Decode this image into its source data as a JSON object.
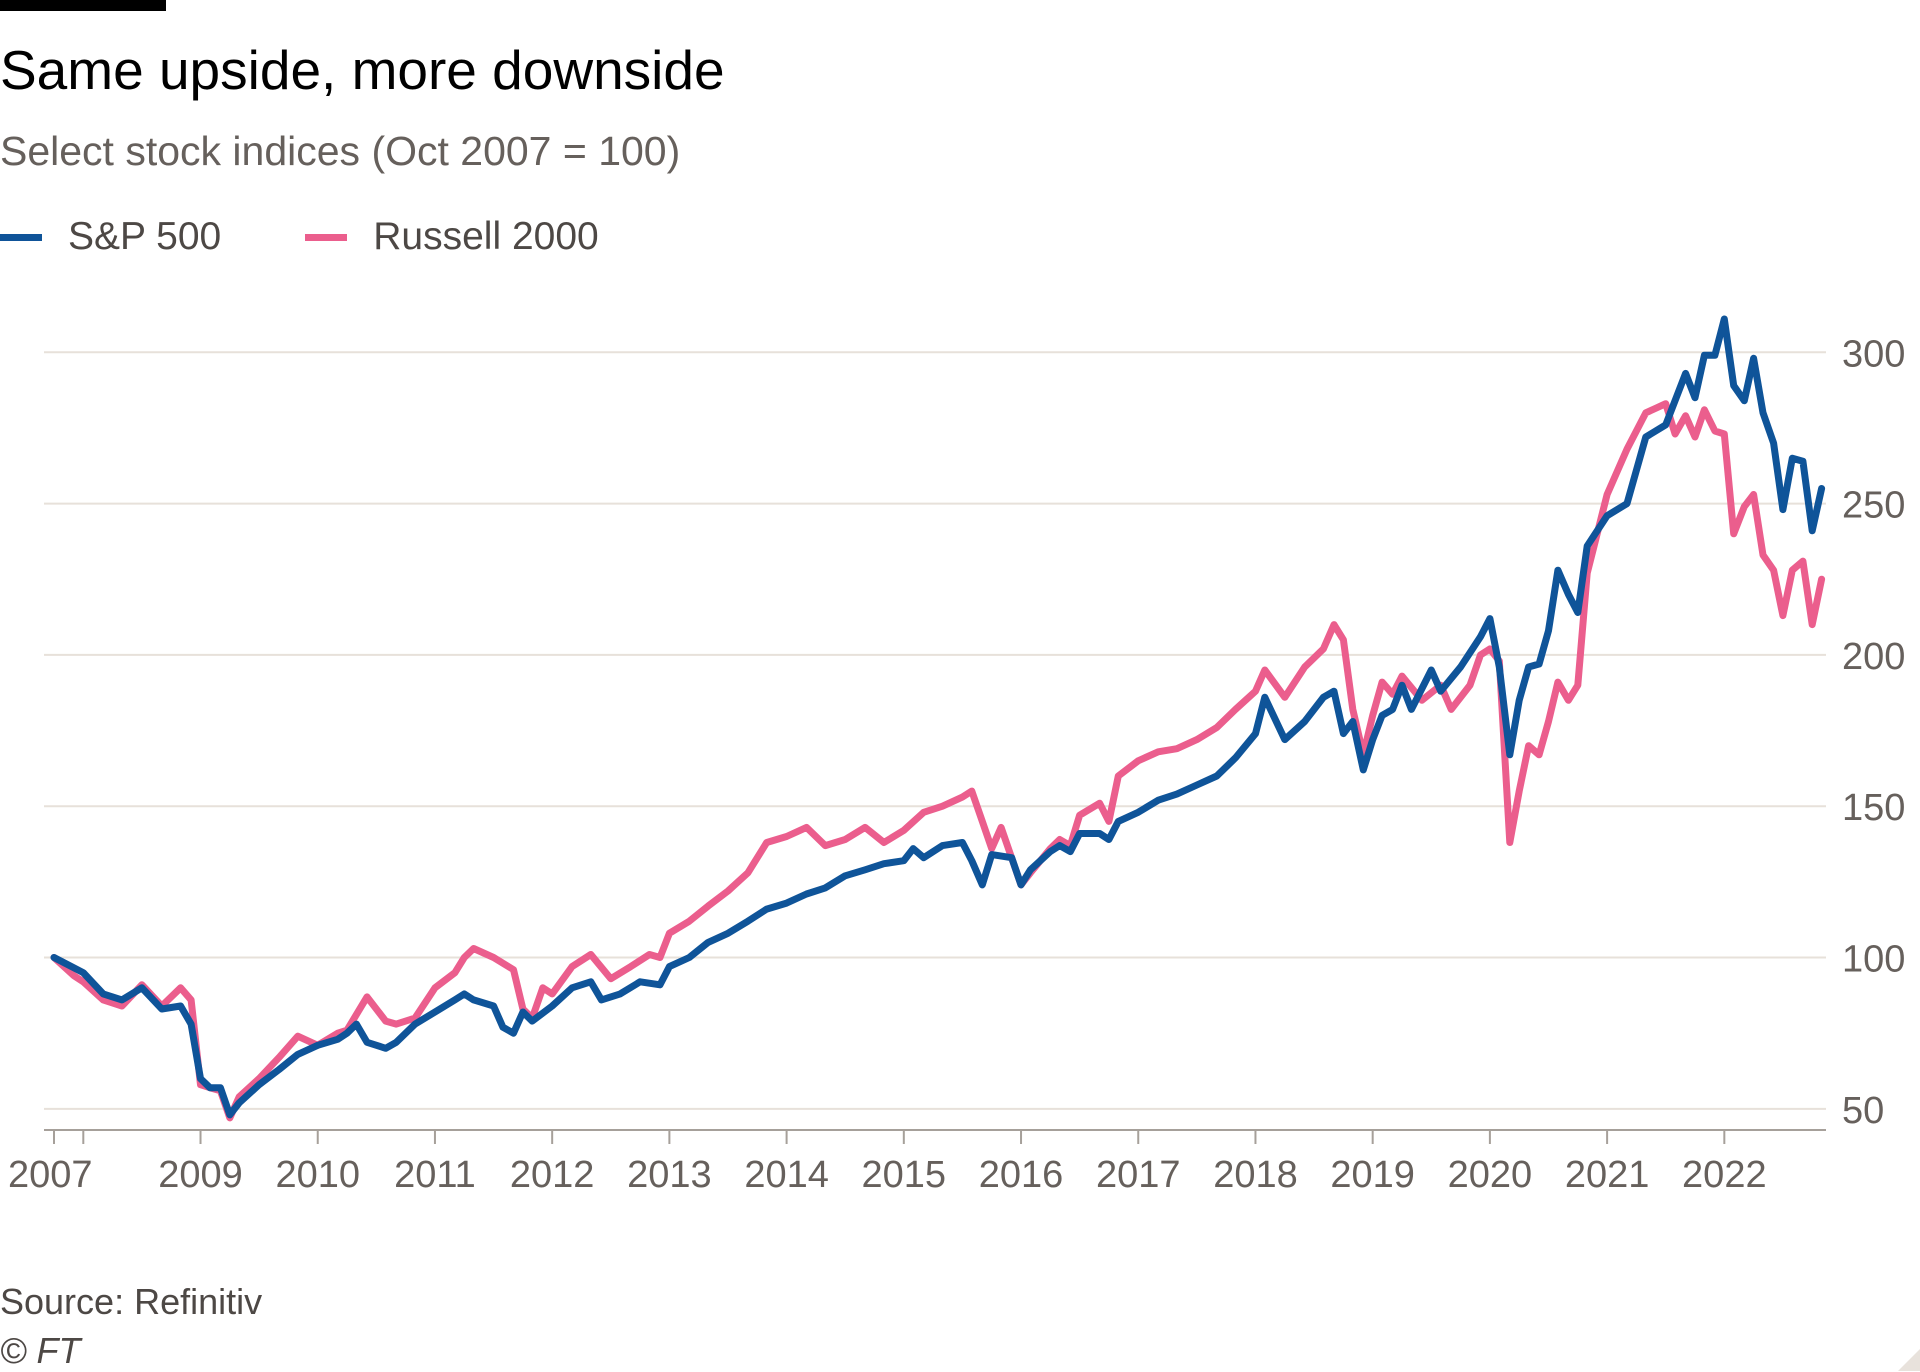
{
  "header": {
    "title": "Same upside, more downside",
    "subtitle": "Select stock indices (Oct 2007 = 100)"
  },
  "footer": {
    "source": "Source: Refinitiv",
    "copyright": "© FT"
  },
  "colors": {
    "sp500": "#0f5499",
    "russell": "#eb5e8d",
    "grid": "#e7e1da",
    "tick_text": "#66605c",
    "axis": "#a6a09a"
  },
  "chart_data": {
    "type": "line",
    "title": "Same upside, more downside",
    "subtitle": "Select stock indices (Oct 2007 = 100)",
    "xlabel": "",
    "ylabel": "",
    "xlim": [
      2007.75,
      2022.8333
    ],
    "ylim": [
      45,
      310
    ],
    "yticks": [
      50,
      100,
      150,
      200,
      250,
      300
    ],
    "ytick_position": "right",
    "xticks": [
      {
        "label": "2007",
        "x": 2007.75
      },
      {
        "label": "2009",
        "x": 2009.0
      },
      {
        "label": "2010",
        "x": 2010.0
      },
      {
        "label": "2011",
        "x": 2011.0
      },
      {
        "label": "2012",
        "x": 2012.0
      },
      {
        "label": "2013",
        "x": 2013.0
      },
      {
        "label": "2014",
        "x": 2014.0
      },
      {
        "label": "2015",
        "x": 2015.0
      },
      {
        "label": "2016",
        "x": 2016.0
      },
      {
        "label": "2017",
        "x": 2017.0
      },
      {
        "label": "2018",
        "x": 2018.0
      },
      {
        "label": "2019",
        "x": 2019.0
      },
      {
        "label": "2020",
        "x": 2020.0
      },
      {
        "label": "2021",
        "x": 2021.0
      },
      {
        "label": "2022",
        "x": 2022.0
      }
    ],
    "minor_xticks": [
      2008.0
    ],
    "legend": "top-left",
    "series": [
      {
        "name": "S&P 500",
        "color": "#0f5499",
        "points": [
          [
            2007.75,
            100
          ],
          [
            2008.0,
            95
          ],
          [
            2008.17,
            88
          ],
          [
            2008.33,
            86
          ],
          [
            2008.5,
            90
          ],
          [
            2008.67,
            83
          ],
          [
            2008.83,
            84
          ],
          [
            2008.92,
            78
          ],
          [
            2009.0,
            60
          ],
          [
            2009.08,
            57
          ],
          [
            2009.17,
            57
          ],
          [
            2009.25,
            48
          ],
          [
            2009.33,
            52
          ],
          [
            2009.5,
            58
          ],
          [
            2009.67,
            63
          ],
          [
            2009.83,
            68
          ],
          [
            2010.0,
            71
          ],
          [
            2010.17,
            73
          ],
          [
            2010.25,
            75
          ],
          [
            2010.33,
            78
          ],
          [
            2010.42,
            72
          ],
          [
            2010.58,
            70
          ],
          [
            2010.67,
            72
          ],
          [
            2010.83,
            78
          ],
          [
            2011.0,
            82
          ],
          [
            2011.17,
            86
          ],
          [
            2011.25,
            88
          ],
          [
            2011.33,
            86
          ],
          [
            2011.5,
            84
          ],
          [
            2011.58,
            77
          ],
          [
            2011.67,
            75
          ],
          [
            2011.75,
            82
          ],
          [
            2011.83,
            79
          ],
          [
            2012.0,
            84
          ],
          [
            2012.17,
            90
          ],
          [
            2012.33,
            92
          ],
          [
            2012.42,
            86
          ],
          [
            2012.58,
            88
          ],
          [
            2012.75,
            92
          ],
          [
            2012.92,
            91
          ],
          [
            2013.0,
            97
          ],
          [
            2013.17,
            100
          ],
          [
            2013.33,
            105
          ],
          [
            2013.5,
            108
          ],
          [
            2013.67,
            112
          ],
          [
            2013.83,
            116
          ],
          [
            2014.0,
            118
          ],
          [
            2014.17,
            121
          ],
          [
            2014.33,
            123
          ],
          [
            2014.5,
            127
          ],
          [
            2014.67,
            129
          ],
          [
            2014.83,
            131
          ],
          [
            2015.0,
            132
          ],
          [
            2015.08,
            136
          ],
          [
            2015.17,
            133
          ],
          [
            2015.33,
            137
          ],
          [
            2015.5,
            138
          ],
          [
            2015.58,
            132
          ],
          [
            2015.67,
            124
          ],
          [
            2015.75,
            134
          ],
          [
            2015.92,
            133
          ],
          [
            2016.0,
            124
          ],
          [
            2016.08,
            129
          ],
          [
            2016.25,
            135
          ],
          [
            2016.33,
            137
          ],
          [
            2016.42,
            135
          ],
          [
            2016.5,
            141
          ],
          [
            2016.67,
            141
          ],
          [
            2016.75,
            139
          ],
          [
            2016.83,
            145
          ],
          [
            2017.0,
            148
          ],
          [
            2017.17,
            152
          ],
          [
            2017.33,
            154
          ],
          [
            2017.5,
            157
          ],
          [
            2017.67,
            160
          ],
          [
            2017.83,
            166
          ],
          [
            2018.0,
            174
          ],
          [
            2018.08,
            186
          ],
          [
            2018.25,
            172
          ],
          [
            2018.42,
            178
          ],
          [
            2018.58,
            186
          ],
          [
            2018.67,
            188
          ],
          [
            2018.75,
            174
          ],
          [
            2018.83,
            178
          ],
          [
            2018.92,
            162
          ],
          [
            2019.0,
            172
          ],
          [
            2019.08,
            180
          ],
          [
            2019.17,
            182
          ],
          [
            2019.25,
            190
          ],
          [
            2019.33,
            182
          ],
          [
            2019.5,
            195
          ],
          [
            2019.58,
            188
          ],
          [
            2019.75,
            196
          ],
          [
            2019.92,
            206
          ],
          [
            2020.0,
            212
          ],
          [
            2020.08,
            196
          ],
          [
            2020.17,
            167
          ],
          [
            2020.25,
            185
          ],
          [
            2020.33,
            196
          ],
          [
            2020.42,
            197
          ],
          [
            2020.5,
            208
          ],
          [
            2020.58,
            228
          ],
          [
            2020.67,
            220
          ],
          [
            2020.75,
            214
          ],
          [
            2020.83,
            236
          ],
          [
            2021.0,
            246
          ],
          [
            2021.17,
            250
          ],
          [
            2021.33,
            272
          ],
          [
            2021.5,
            276
          ],
          [
            2021.67,
            293
          ],
          [
            2021.75,
            285
          ],
          [
            2021.83,
            299
          ],
          [
            2021.92,
            299
          ],
          [
            2022.0,
            311
          ],
          [
            2022.08,
            289
          ],
          [
            2022.17,
            284
          ],
          [
            2022.25,
            298
          ],
          [
            2022.33,
            280
          ],
          [
            2022.42,
            270
          ],
          [
            2022.5,
            248
          ],
          [
            2022.58,
            265
          ],
          [
            2022.67,
            264
          ],
          [
            2022.75,
            241
          ],
          [
            2022.83,
            255
          ]
        ]
      },
      {
        "name": "Russell 2000",
        "color": "#eb5e8d",
        "points": [
          [
            2007.75,
            100
          ],
          [
            2007.92,
            94
          ],
          [
            2008.0,
            92
          ],
          [
            2008.17,
            86
          ],
          [
            2008.33,
            84
          ],
          [
            2008.5,
            91
          ],
          [
            2008.67,
            84
          ],
          [
            2008.83,
            90
          ],
          [
            2008.92,
            86
          ],
          [
            2009.0,
            58
          ],
          [
            2009.08,
            57
          ],
          [
            2009.17,
            56
          ],
          [
            2009.25,
            47
          ],
          [
            2009.33,
            54
          ],
          [
            2009.5,
            60
          ],
          [
            2009.67,
            67
          ],
          [
            2009.83,
            74
          ],
          [
            2010.0,
            71
          ],
          [
            2010.17,
            75
          ],
          [
            2010.25,
            76
          ],
          [
            2010.42,
            87
          ],
          [
            2010.58,
            79
          ],
          [
            2010.67,
            78
          ],
          [
            2010.83,
            80
          ],
          [
            2011.0,
            90
          ],
          [
            2011.17,
            95
          ],
          [
            2011.25,
            100
          ],
          [
            2011.33,
            103
          ],
          [
            2011.5,
            100
          ],
          [
            2011.67,
            96
          ],
          [
            2011.75,
            83
          ],
          [
            2011.83,
            80
          ],
          [
            2011.92,
            90
          ],
          [
            2012.0,
            88
          ],
          [
            2012.17,
            97
          ],
          [
            2012.33,
            101
          ],
          [
            2012.5,
            93
          ],
          [
            2012.67,
            97
          ],
          [
            2012.83,
            101
          ],
          [
            2012.92,
            100
          ],
          [
            2013.0,
            108
          ],
          [
            2013.17,
            112
          ],
          [
            2013.33,
            117
          ],
          [
            2013.5,
            122
          ],
          [
            2013.67,
            128
          ],
          [
            2013.83,
            138
          ],
          [
            2014.0,
            140
          ],
          [
            2014.17,
            143
          ],
          [
            2014.33,
            137
          ],
          [
            2014.5,
            139
          ],
          [
            2014.67,
            143
          ],
          [
            2014.83,
            138
          ],
          [
            2015.0,
            142
          ],
          [
            2015.17,
            148
          ],
          [
            2015.33,
            150
          ],
          [
            2015.5,
            153
          ],
          [
            2015.58,
            155
          ],
          [
            2015.67,
            145
          ],
          [
            2015.75,
            136
          ],
          [
            2015.83,
            143
          ],
          [
            2016.0,
            124
          ],
          [
            2016.08,
            128
          ],
          [
            2016.25,
            136
          ],
          [
            2016.33,
            139
          ],
          [
            2016.42,
            137
          ],
          [
            2016.5,
            147
          ],
          [
            2016.67,
            151
          ],
          [
            2016.75,
            145
          ],
          [
            2016.83,
            160
          ],
          [
            2017.0,
            165
          ],
          [
            2017.17,
            168
          ],
          [
            2017.33,
            169
          ],
          [
            2017.5,
            172
          ],
          [
            2017.67,
            176
          ],
          [
            2017.83,
            182
          ],
          [
            2018.0,
            188
          ],
          [
            2018.08,
            195
          ],
          [
            2018.25,
            186
          ],
          [
            2018.42,
            196
          ],
          [
            2018.58,
            202
          ],
          [
            2018.67,
            210
          ],
          [
            2018.75,
            205
          ],
          [
            2018.83,
            182
          ],
          [
            2018.92,
            167
          ],
          [
            2019.0,
            180
          ],
          [
            2019.08,
            191
          ],
          [
            2019.17,
            187
          ],
          [
            2019.25,
            193
          ],
          [
            2019.42,
            185
          ],
          [
            2019.58,
            190
          ],
          [
            2019.67,
            182
          ],
          [
            2019.83,
            190
          ],
          [
            2019.92,
            200
          ],
          [
            2020.0,
            202
          ],
          [
            2020.08,
            198
          ],
          [
            2020.17,
            138
          ],
          [
            2020.25,
            155
          ],
          [
            2020.33,
            170
          ],
          [
            2020.42,
            167
          ],
          [
            2020.5,
            178
          ],
          [
            2020.58,
            191
          ],
          [
            2020.67,
            185
          ],
          [
            2020.75,
            190
          ],
          [
            2020.83,
            227
          ],
          [
            2021.0,
            253
          ],
          [
            2021.17,
            268
          ],
          [
            2021.33,
            280
          ],
          [
            2021.5,
            283
          ],
          [
            2021.58,
            273
          ],
          [
            2021.67,
            279
          ],
          [
            2021.75,
            272
          ],
          [
            2021.83,
            281
          ],
          [
            2021.92,
            274
          ],
          [
            2022.0,
            273
          ],
          [
            2022.08,
            240
          ],
          [
            2022.17,
            249
          ],
          [
            2022.25,
            253
          ],
          [
            2022.33,
            233
          ],
          [
            2022.42,
            228
          ],
          [
            2022.5,
            213
          ],
          [
            2022.58,
            228
          ],
          [
            2022.67,
            231
          ],
          [
            2022.75,
            210
          ],
          [
            2022.83,
            225
          ]
        ]
      }
    ]
  }
}
